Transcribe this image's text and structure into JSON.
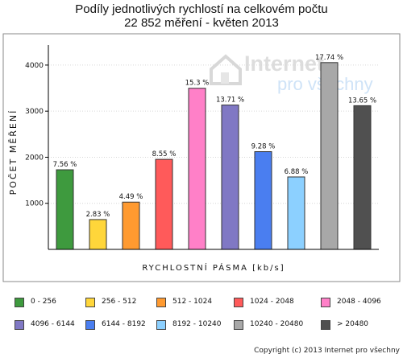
{
  "title_line1": "Podíly jednotlivých rychlostí na celkovém počtu",
  "title_line2": "22 852 měření - květen 2013",
  "logo": {
    "line1": "Internet",
    "line2": "pro všechny"
  },
  "copyright": "Copyright (c) 2013 Internet pro všechny",
  "chart_data": {
    "type": "bar",
    "title": "Podíly jednotlivých rychlostí na celkovém počtu 22 852 měření - květen 2013",
    "xlabel": "RYCHLOSTNÍ PÁSMA [kb/s]",
    "ylabel": "POČET MĚŘENÍ",
    "ylim": [
      0,
      4400
    ],
    "yticks": [
      1000,
      2000,
      3000,
      4000
    ],
    "grid": true,
    "legend_position": "bottom",
    "categories": [
      "0 - 256",
      "256 - 512",
      "512 - 1024",
      "1024 - 2048",
      "2048 - 4096",
      "4096 - 6144",
      "6144 - 8192",
      "8192 - 10240",
      "10240 - 20480",
      "> 20480"
    ],
    "values": [
      1728,
      647,
      1026,
      1954,
      3497,
      3133,
      2121,
      1572,
      4054,
      3119
    ],
    "data_labels": [
      "7.56 %",
      "2.83 %",
      "4.49 %",
      "8.55 %",
      "15.3 %",
      "13.71 %",
      "9.28 %",
      "6.88 %",
      "17.74 %",
      "13.65 %"
    ],
    "colors": [
      "#3e9a3e",
      "#ffd63a",
      "#ff9a30",
      "#ff5a5a",
      "#ff80c8",
      "#8078c4",
      "#4a7ef0",
      "#8cd0ff",
      "#a8a8a8",
      "#505050"
    ]
  }
}
